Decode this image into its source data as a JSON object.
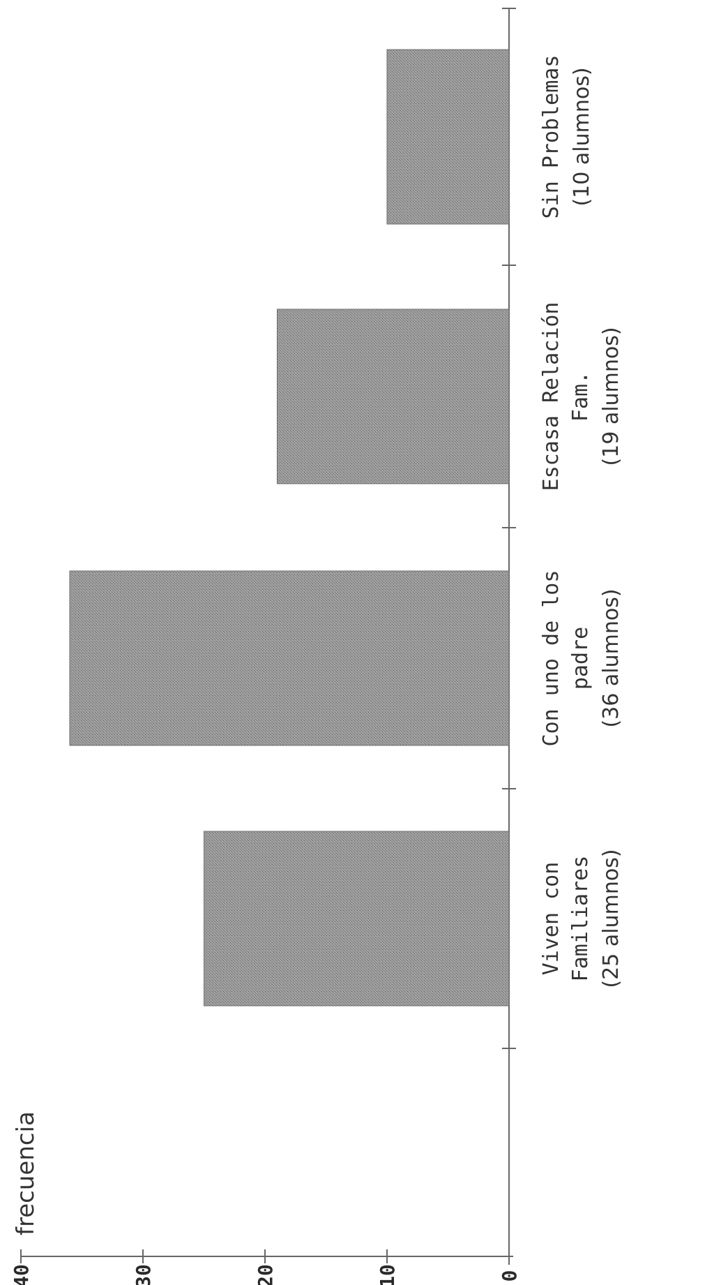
{
  "chart_data": {
    "type": "bar",
    "orientation": "rotated",
    "ylabel": "frecuencia",
    "ylim": [
      0,
      40
    ],
    "yticks": [
      "0",
      "10",
      "20",
      "30",
      "40"
    ],
    "categories": [
      {
        "lines": [
          "Viven con",
          "Familiares"
        ],
        "count_label": "(25 alumnos)"
      },
      {
        "lines": [
          "Con uno de los",
          "padre"
        ],
        "count_label": "(36 alumnos)"
      },
      {
        "lines": [
          "Escasa Relación",
          "Fam."
        ],
        "count_label": "(19 alumnos)"
      },
      {
        "lines": [
          "Sin Problemas"
        ],
        "count_label": "(10 alumnos)"
      }
    ],
    "values": [
      25,
      36,
      19,
      10
    ],
    "bar_color": "#8c8c8c",
    "grid": false
  }
}
